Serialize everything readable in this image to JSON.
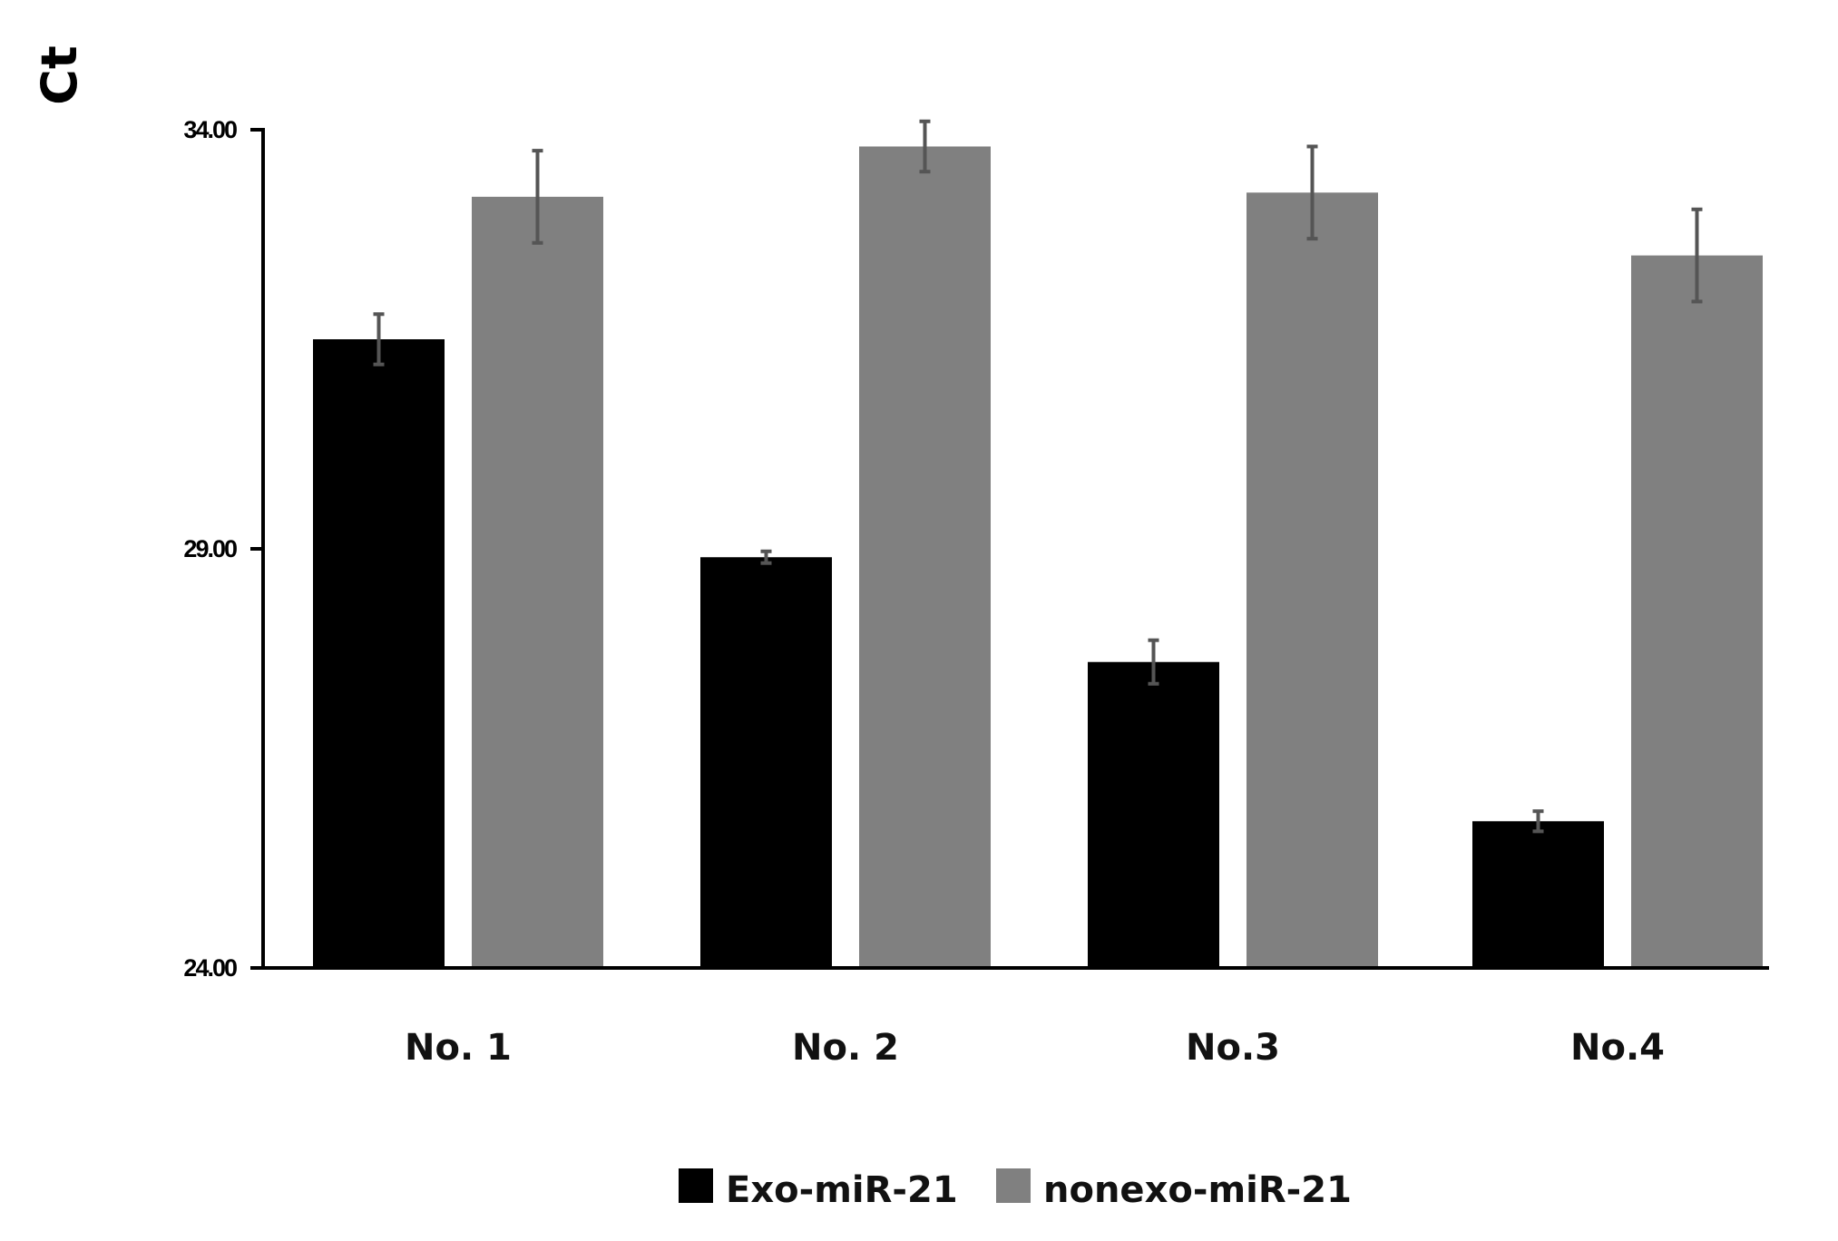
{
  "chart_data": {
    "type": "bar",
    "title": "",
    "xlabel": "",
    "ylabel": "Ct",
    "ylim": [
      24,
      34
    ],
    "yticks": [
      24,
      29,
      34
    ],
    "ytick_labels": [
      "24.00",
      "29.00",
      "34.00"
    ],
    "grid": false,
    "legend_position": "bottom",
    "categories": [
      "No. 1",
      "No. 2",
      "No.3",
      "No.4"
    ],
    "series": [
      {
        "name": "Exo-miR-21",
        "color": "#000000",
        "values": [
          31.5,
          28.9,
          27.65,
          25.75
        ],
        "errors": [
          0.3,
          0.07,
          0.26,
          0.12
        ]
      },
      {
        "name": "nonexo-miR-21",
        "color": "#808080",
        "values": [
          33.2,
          33.8,
          33.25,
          32.5
        ],
        "errors": [
          0.55,
          0.3,
          0.55,
          0.55
        ]
      }
    ]
  },
  "colors": {
    "errorbar": "#555555",
    "axis": "#000000"
  }
}
